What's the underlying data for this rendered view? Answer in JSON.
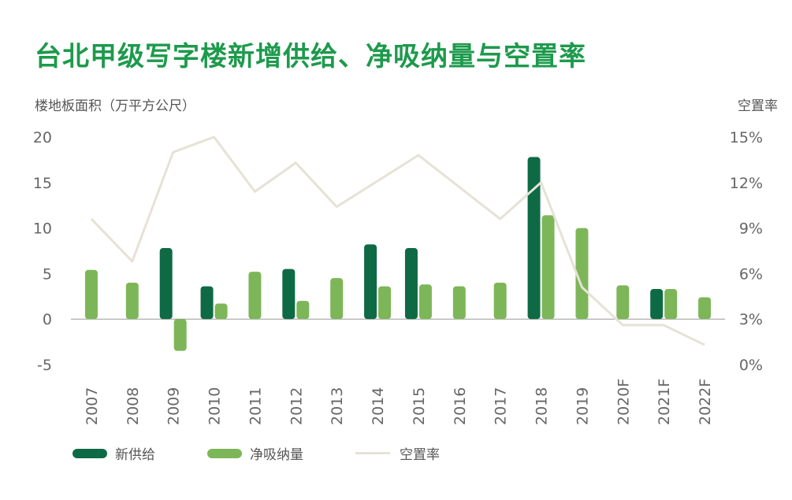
{
  "title": "台北甲级写字楼新增供给、净吸纳量与空置率",
  "colors": {
    "title": "#1d9a4c",
    "supply": "#0e6a45",
    "absorption": "#7db658",
    "vacancy": "#e6e2d6",
    "axis_text": "#666666"
  },
  "chart_data": {
    "type": "bar",
    "title": "台北甲级写字楼新增供给、净吸纳量与空置率",
    "ylabel_left": "楼地板面积（万平方公尺）",
    "ylabel_right": "空置率",
    "ylim_left": [
      -5,
      20
    ],
    "ylim_right": [
      0,
      15
    ],
    "yticks_left": [
      "20",
      "15",
      "10",
      "5",
      "0",
      "-5"
    ],
    "yticks_right": [
      "15%",
      "12%",
      "9%",
      "6%",
      "3%",
      "0%"
    ],
    "yticks_left_values": [
      20,
      15,
      10,
      5,
      0,
      -5
    ],
    "yticks_right_values": [
      15,
      12,
      9,
      6,
      3,
      0
    ],
    "categories": [
      "2007",
      "2008",
      "2009",
      "2010",
      "2011",
      "2012",
      "2013",
      "2014",
      "2015",
      "2016",
      "2017",
      "2018",
      "2019",
      "2020F",
      "2021F",
      "2022F"
    ],
    "series": [
      {
        "name": "新供给",
        "kind": "bar",
        "axis": "left",
        "values": [
          0,
          0,
          7.8,
          3.6,
          0,
          5.5,
          0,
          8.2,
          7.8,
          0,
          0,
          17.8,
          0,
          0,
          3.3,
          0
        ]
      },
      {
        "name": "净吸纳量",
        "kind": "bar",
        "axis": "left",
        "values": [
          5.4,
          4.0,
          -3.5,
          1.7,
          5.2,
          2.0,
          4.5,
          3.6,
          3.8,
          3.6,
          4.0,
          11.4,
          10.0,
          3.7,
          3.3,
          2.4
        ]
      },
      {
        "name": "空置率",
        "kind": "line",
        "axis": "right",
        "values": [
          9.6,
          6.8,
          14.0,
          15.0,
          11.4,
          13.3,
          10.4,
          12.1,
          13.8,
          11.7,
          9.6,
          12.0,
          5.1,
          2.6,
          2.6,
          1.3
        ]
      }
    ]
  },
  "legend": {
    "supply": "新供给",
    "absorption": "净吸纳量",
    "vacancy": "空置率"
  }
}
